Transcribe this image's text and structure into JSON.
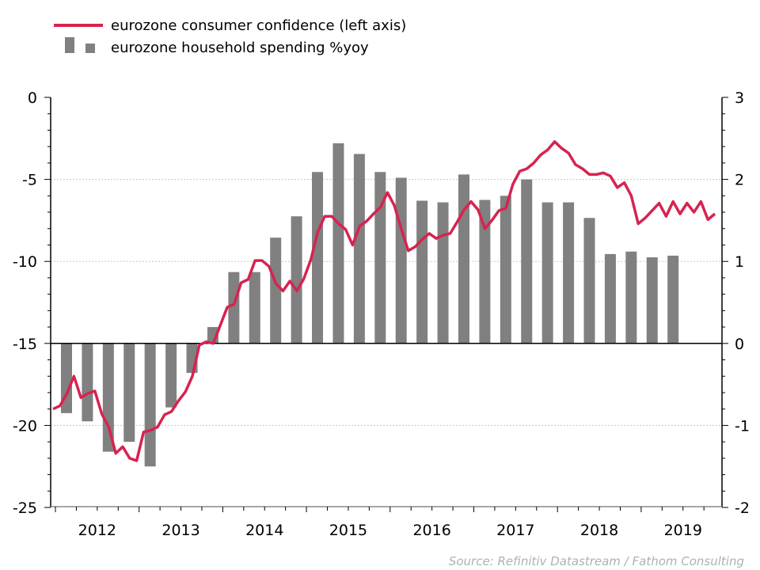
{
  "chart_data": {
    "type": "bar+line",
    "title": "",
    "legend": {
      "placement": "top-left",
      "entries": [
        "eurozone consumer confidence (left axis)",
        "eurozone household spending %yoy"
      ]
    },
    "source": "Source: Refinitiv Datastream / Fathom Consulting",
    "left_axis": {
      "ylim": [
        -25,
        0
      ],
      "ticks": [
        "0",
        "-5",
        "-10",
        "-15",
        "-20",
        "-25"
      ],
      "tick_values": [
        0,
        -5,
        -10,
        -15,
        -20,
        -25
      ]
    },
    "right_axis": {
      "ylim": [
        -2,
        3
      ],
      "ticks": [
        "3",
        "2",
        "1",
        "0",
        "-1",
        "-2"
      ],
      "tick_values": [
        3,
        2,
        1,
        0,
        -1,
        -2
      ]
    },
    "x_tick_labels": [
      "2012",
      "2013",
      "2014",
      "2015",
      "2016",
      "2017",
      "2018",
      "2019"
    ],
    "grid": {
      "horizontal": true,
      "style": "dotted"
    },
    "colors": {
      "line": "#d7234f",
      "bars": "#808080"
    },
    "series": [
      {
        "name": "eurozone consumer confidence (left axis)",
        "type": "line",
        "axis": "left",
        "frequency": "monthly",
        "x": [
          "2012-01",
          "2012-02",
          "2012-03",
          "2012-04",
          "2012-05",
          "2012-06",
          "2012-07",
          "2012-08",
          "2012-09",
          "2012-10",
          "2012-11",
          "2012-12",
          "2013-01",
          "2013-02",
          "2013-03",
          "2013-04",
          "2013-05",
          "2013-06",
          "2013-07",
          "2013-08",
          "2013-09",
          "2013-10",
          "2013-11",
          "2013-12",
          "2014-01",
          "2014-02",
          "2014-03",
          "2014-04",
          "2014-05",
          "2014-06",
          "2014-07",
          "2014-08",
          "2014-09",
          "2014-10",
          "2014-11",
          "2014-12",
          "2015-01",
          "2015-02",
          "2015-03",
          "2015-04",
          "2015-05",
          "2015-06",
          "2015-07",
          "2015-08",
          "2015-09",
          "2015-10",
          "2015-11",
          "2015-12",
          "2016-01",
          "2016-02",
          "2016-03",
          "2016-04",
          "2016-05",
          "2016-06",
          "2016-07",
          "2016-08",
          "2016-09",
          "2016-10",
          "2016-11",
          "2016-12",
          "2017-01",
          "2017-02",
          "2017-03",
          "2017-04",
          "2017-05",
          "2017-06",
          "2017-07",
          "2017-08",
          "2017-09",
          "2017-10",
          "2017-11",
          "2017-12",
          "2018-01",
          "2018-02",
          "2018-03",
          "2018-04",
          "2018-05",
          "2018-06",
          "2018-07",
          "2018-08",
          "2018-09",
          "2018-10",
          "2018-11",
          "2018-12",
          "2019-01",
          "2019-02",
          "2019-03",
          "2019-04",
          "2019-05",
          "2019-06",
          "2019-07",
          "2019-08",
          "2019-09",
          "2019-10",
          "2019-11",
          "2019-12"
        ],
        "values": [
          -19.0,
          -18.8,
          -18.05,
          -17.0,
          -18.3,
          -18.05,
          -17.9,
          -19.3,
          -20.1,
          -21.7,
          -21.3,
          -22.0,
          -22.15,
          -20.4,
          -20.3,
          -20.1,
          -19.35,
          -19.15,
          -18.5,
          -17.95,
          -17.0,
          -15.1,
          -14.9,
          -15.0,
          -13.9,
          -12.8,
          -12.6,
          -11.3,
          -11.1,
          -9.95,
          -9.95,
          -10.3,
          -11.35,
          -11.8,
          -11.2,
          -11.8,
          -11.05,
          -9.9,
          -8.2,
          -7.25,
          -7.25,
          -7.7,
          -8.05,
          -9.0,
          -7.85,
          -7.55,
          -7.1,
          -6.7,
          -5.8,
          -6.6,
          -8.05,
          -9.35,
          -9.1,
          -8.65,
          -8.3,
          -8.6,
          -8.4,
          -8.3,
          -7.6,
          -6.85,
          -6.35,
          -6.85,
          -8.0,
          -7.5,
          -6.9,
          -6.75,
          -5.3,
          -4.5,
          -4.35,
          -4.0,
          -3.5,
          -3.2,
          -2.7,
          -3.1,
          -3.4,
          -4.1,
          -4.35,
          -4.7,
          -4.7,
          -4.6,
          -4.8,
          -5.5,
          -5.2,
          -6.0,
          -7.7,
          -7.35,
          -6.9,
          -6.45,
          -7.25,
          -6.35,
          -7.1,
          -6.45,
          -7.0,
          -6.35,
          -7.45,
          -7.1
        ]
      },
      {
        "name": "eurozone household spending %yoy",
        "type": "bar",
        "axis": "right",
        "frequency": "quarterly",
        "x": [
          "2012Q1",
          "2012Q2",
          "2012Q3",
          "2012Q4",
          "2013Q1",
          "2013Q2",
          "2013Q3",
          "2013Q4",
          "2014Q1",
          "2014Q2",
          "2014Q3",
          "2014Q4",
          "2015Q1",
          "2015Q2",
          "2015Q3",
          "2015Q4",
          "2016Q1",
          "2016Q2",
          "2016Q3",
          "2016Q4",
          "2017Q1",
          "2017Q2",
          "2017Q3",
          "2017Q4",
          "2018Q1",
          "2018Q2",
          "2018Q3",
          "2018Q4",
          "2019Q1",
          "2019Q2"
        ],
        "values": [
          -0.85,
          -0.95,
          -1.32,
          -1.2,
          -1.5,
          -0.78,
          -0.36,
          0.2,
          0.87,
          0.87,
          1.29,
          1.55,
          2.09,
          2.44,
          2.31,
          2.09,
          2.02,
          1.74,
          1.72,
          2.06,
          1.75,
          1.8,
          2.0,
          1.72,
          1.72,
          1.53,
          1.09,
          1.12,
          1.05,
          1.07
        ]
      }
    ]
  }
}
